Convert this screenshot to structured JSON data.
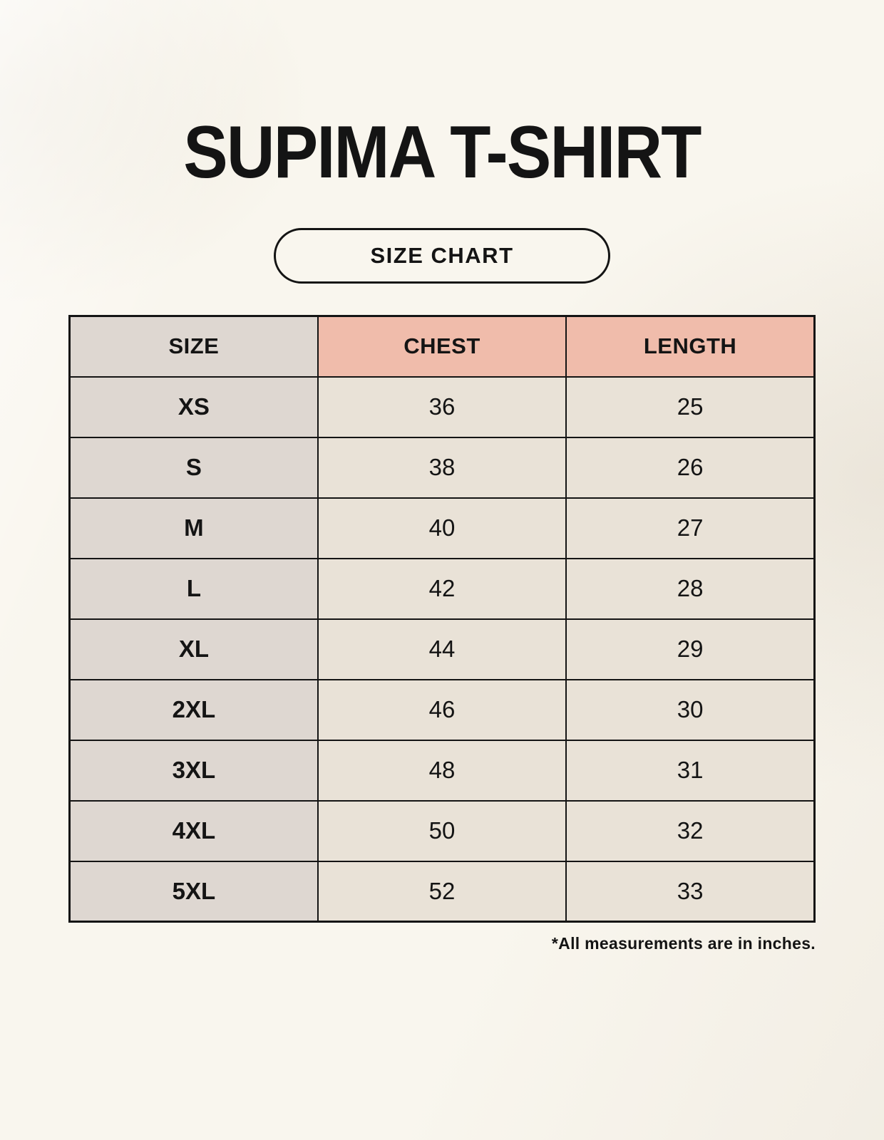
{
  "theme": {
    "background": "#f9f6ee",
    "header_accent": "#f0bcab",
    "neutral_cell": "#ded7d1",
    "beige_cell": "#e9e2d7",
    "border": "#141414",
    "text": "#141414"
  },
  "chart_data": {
    "type": "table",
    "title": "SUPIMA T-SHIRT",
    "badge_label": "SIZE CHART",
    "columns": [
      "SIZE",
      "CHEST",
      "LENGTH"
    ],
    "rows": [
      [
        "XS",
        36,
        25
      ],
      [
        "S",
        38,
        26
      ],
      [
        "M",
        40,
        27
      ],
      [
        "L",
        42,
        28
      ],
      [
        "XL",
        44,
        29
      ],
      [
        "2XL",
        46,
        30
      ],
      [
        "3XL",
        48,
        31
      ],
      [
        "4XL",
        50,
        32
      ],
      [
        "5XL",
        52,
        33
      ]
    ],
    "footnote": "*All measurements are in inches.",
    "units": "inches"
  }
}
